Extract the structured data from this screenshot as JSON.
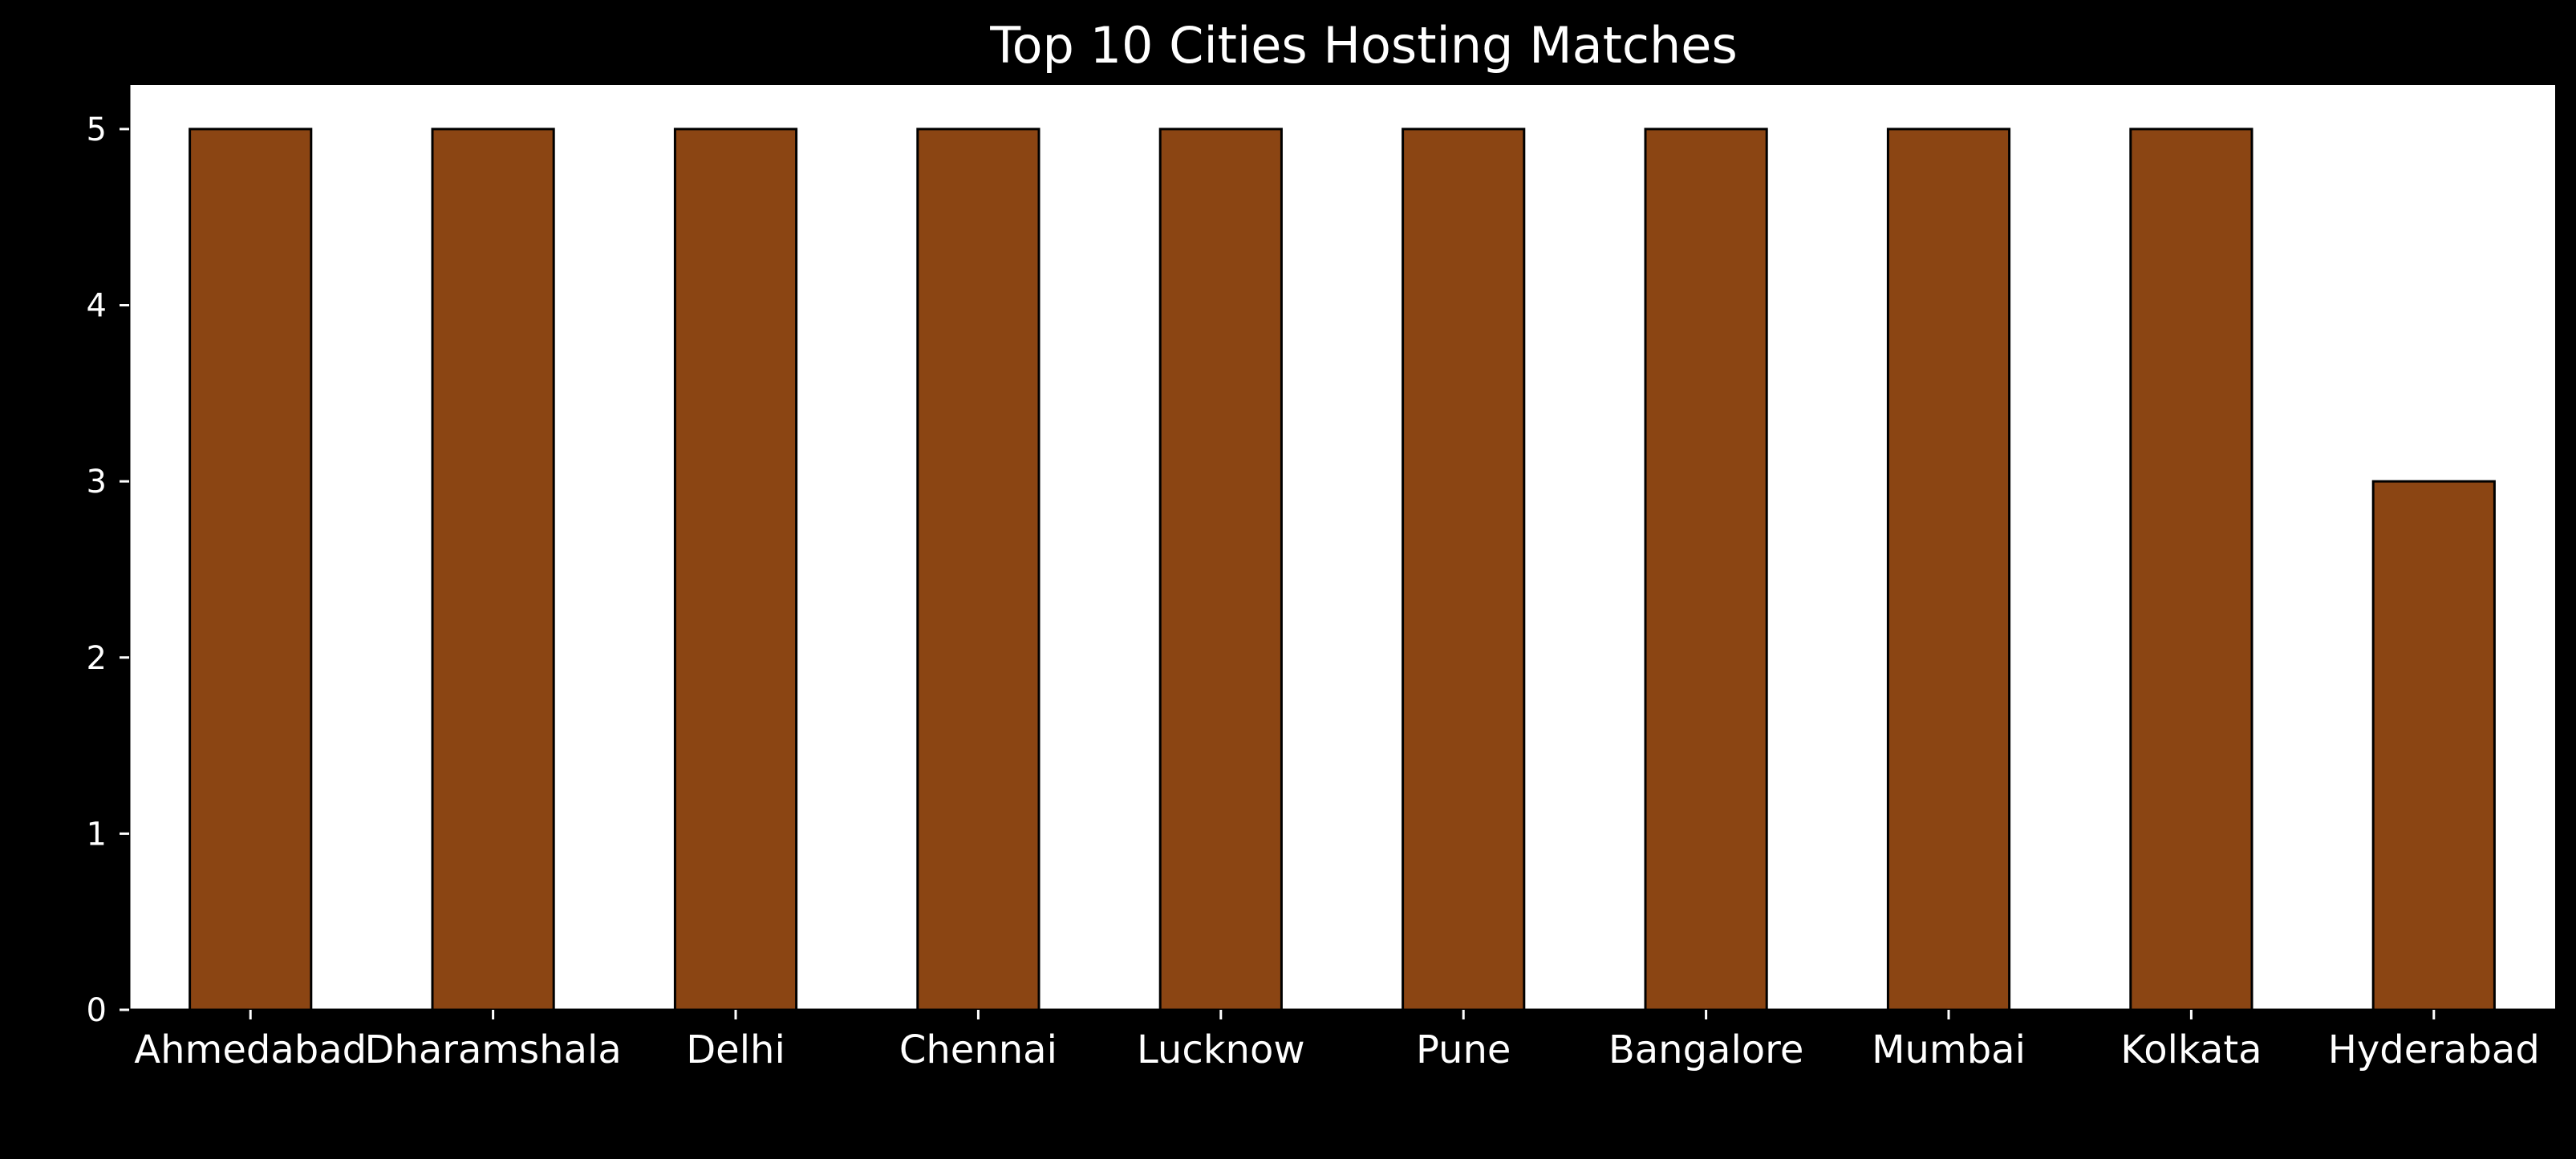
{
  "chart_data": {
    "type": "bar",
    "title": "Top 10 Cities Hosting Matches",
    "xlabel": "",
    "ylabel": "",
    "categories": [
      "Ahmedabad",
      "Dharamshala",
      "Delhi",
      "Chennai",
      "Lucknow",
      "Pune",
      "Bangalore",
      "Mumbai",
      "Kolkata",
      "Hyderabad"
    ],
    "values": [
      5,
      5,
      5,
      5,
      5,
      5,
      5,
      5,
      5,
      3
    ],
    "ylim": [
      0,
      5.25
    ],
    "yticks": [
      "0",
      "1",
      "2",
      "3",
      "4",
      "5"
    ],
    "grid": false,
    "legend": "none",
    "colors": {
      "figure_background": "#000000",
      "plot_background": "#ffffff",
      "bar_fill": "#8b4513",
      "bar_edge": "#000000",
      "text": "#ffffff"
    }
  }
}
